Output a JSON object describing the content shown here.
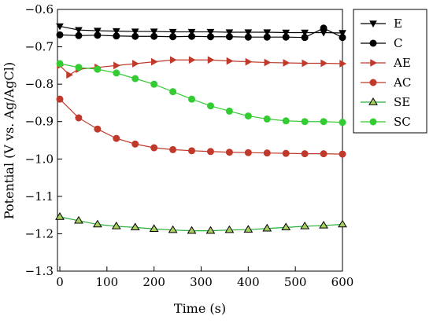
{
  "chart_data": {
    "type": "line",
    "title": "",
    "xlabel": "Time (s)",
    "ylabel": "Potential (V vs. Ag/AgCl)",
    "xlim": [
      -5,
      600
    ],
    "ylim": [
      -1.3,
      -0.6
    ],
    "xticks": [
      0,
      100,
      200,
      300,
      400,
      500,
      600
    ],
    "yticks": [
      -0.6,
      -0.7,
      -0.8,
      -0.9,
      -1.0,
      -1.1,
      -1.2,
      -1.3
    ],
    "xtick_labels": [
      "0",
      "100",
      "200",
      "300",
      "400",
      "500",
      "600"
    ],
    "ytick_labels": [
      "−0.6",
      "−0.7",
      "−0.8",
      "−0.9",
      "−1.0",
      "−1.1",
      "−1.2",
      "−1.3"
    ],
    "grid": false,
    "legend": "right",
    "series": [
      {
        "name": "E",
        "color": "#000000",
        "marker": "triangle-down",
        "marker_fill": "#000000",
        "x": [
          0,
          40,
          80,
          120,
          160,
          200,
          240,
          280,
          320,
          360,
          400,
          440,
          480,
          520,
          560,
          600
        ],
        "y": [
          -0.645,
          -0.655,
          -0.657,
          -0.658,
          -0.659,
          -0.659,
          -0.66,
          -0.66,
          -0.66,
          -0.661,
          -0.661,
          -0.661,
          -0.662,
          -0.662,
          -0.662,
          -0.663
        ]
      },
      {
        "name": "C",
        "color": "#000000",
        "marker": "circle",
        "marker_fill": "#000000",
        "x": [
          0,
          40,
          80,
          120,
          160,
          200,
          240,
          280,
          320,
          360,
          400,
          440,
          480,
          520,
          560,
          600
        ],
        "y": [
          -0.668,
          -0.67,
          -0.669,
          -0.671,
          -0.672,
          -0.672,
          -0.673,
          -0.672,
          -0.673,
          -0.673,
          -0.674,
          -0.674,
          -0.674,
          -0.675,
          -0.65,
          -0.675
        ]
      },
      {
        "name": "AE",
        "color": "#c0392b",
        "marker": "triangle-right",
        "marker_fill": "#c0392b",
        "x": [
          0,
          20,
          40,
          80,
          120,
          160,
          200,
          240,
          280,
          320,
          360,
          400,
          440,
          480,
          520,
          560,
          600
        ],
        "y": [
          -0.75,
          -0.775,
          -0.76,
          -0.755,
          -0.75,
          -0.745,
          -0.74,
          -0.735,
          -0.735,
          -0.735,
          -0.738,
          -0.74,
          -0.742,
          -0.743,
          -0.744,
          -0.744,
          -0.745
        ]
      },
      {
        "name": "AC",
        "color": "#c0392b",
        "marker": "circle",
        "marker_fill": "#c0392b",
        "x": [
          0,
          40,
          80,
          120,
          160,
          200,
          240,
          280,
          320,
          360,
          400,
          440,
          480,
          520,
          560,
          600
        ],
        "y": [
          -0.84,
          -0.89,
          -0.92,
          -0.945,
          -0.96,
          -0.97,
          -0.975,
          -0.978,
          -0.98,
          -0.982,
          -0.983,
          -0.984,
          -0.985,
          -0.986,
          -0.986,
          -0.987
        ]
      },
      {
        "name": "SE",
        "color": "#27ae3a",
        "marker": "triangle-up",
        "marker_fill": "#a8d060",
        "x": [
          0,
          40,
          80,
          120,
          160,
          200,
          240,
          280,
          320,
          360,
          400,
          440,
          480,
          520,
          560,
          600
        ],
        "y": [
          -1.155,
          -1.165,
          -1.175,
          -1.18,
          -1.183,
          -1.187,
          -1.19,
          -1.192,
          -1.192,
          -1.19,
          -1.189,
          -1.186,
          -1.183,
          -1.18,
          -1.178,
          -1.175
        ]
      },
      {
        "name": "SC",
        "color": "#33cc33",
        "marker": "circle",
        "marker_fill": "#33cc33",
        "x": [
          0,
          40,
          80,
          120,
          160,
          200,
          240,
          280,
          320,
          360,
          400,
          440,
          480,
          520,
          560,
          600
        ],
        "y": [
          -0.745,
          -0.755,
          -0.76,
          -0.77,
          -0.785,
          -0.8,
          -0.82,
          -0.84,
          -0.858,
          -0.872,
          -0.885,
          -0.893,
          -0.898,
          -0.9,
          -0.9,
          -0.902
        ]
      }
    ]
  }
}
